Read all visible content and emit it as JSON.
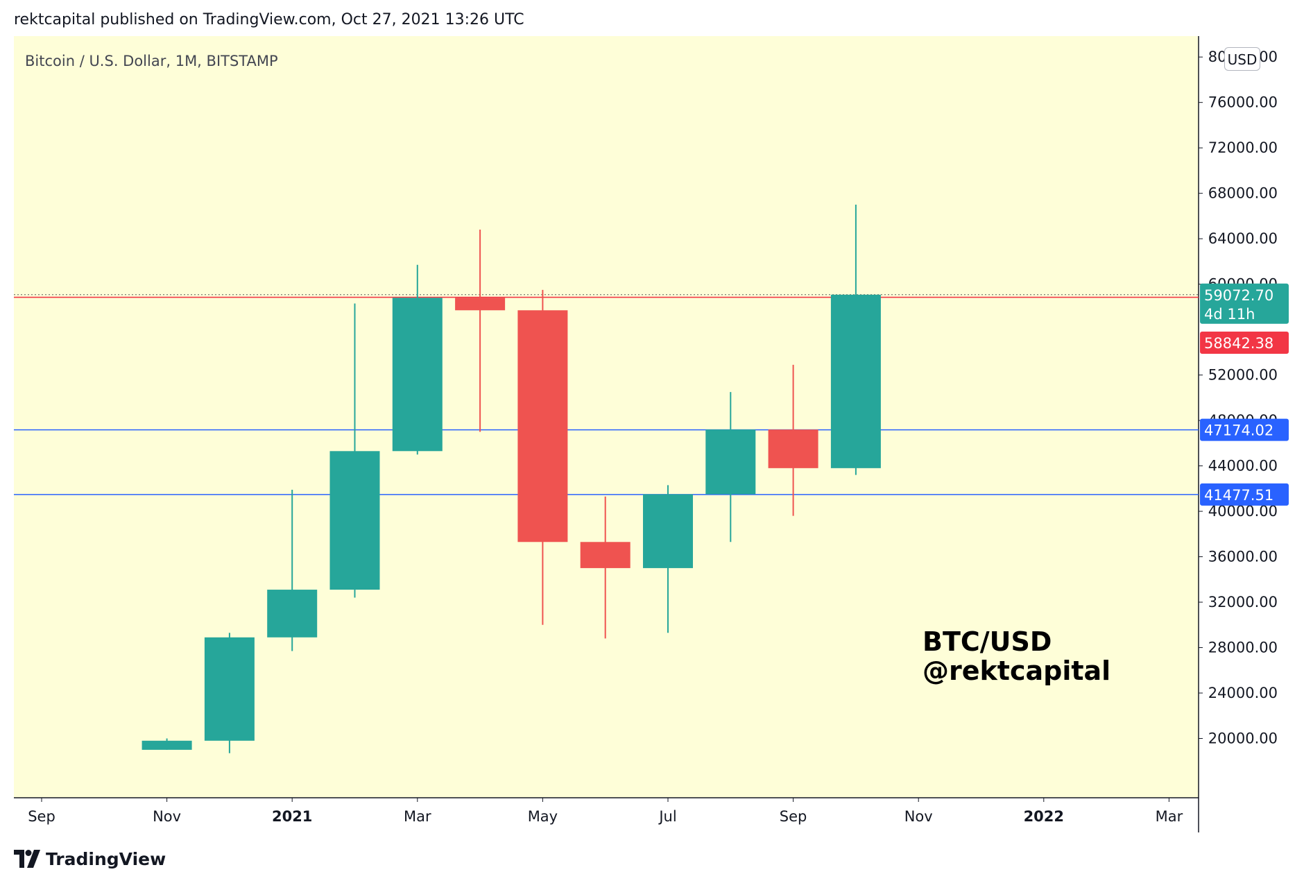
{
  "header": {
    "published": "rektcapital published on TradingView.com, Oct 27, 2021 13:26 UTC"
  },
  "footer": {
    "brand": "TradingView"
  },
  "chart_data": {
    "type": "candlestick",
    "title": "Bitcoin / U.S. Dollar, 1M, BITSTAMP",
    "currency_badge": "USD",
    "watermark": [
      "BTC/USD",
      "@rektcapital"
    ],
    "background": "#fefed8",
    "up_color": "#26a69a",
    "down_color": "#ef5350",
    "ylim": [
      16000,
      80500
    ],
    "y_ticks": [
      {
        "v": 80000,
        "label": "80000.00"
      },
      {
        "v": 76000,
        "label": "76000.00"
      },
      {
        "v": 72000,
        "label": "72000.00"
      },
      {
        "v": 68000,
        "label": "68000.00"
      },
      {
        "v": 64000,
        "label": "64000.00"
      },
      {
        "v": 60000,
        "label": "60000.00"
      },
      {
        "v": 52000,
        "label": "52000.00"
      },
      {
        "v": 48000,
        "label": "48000.00"
      },
      {
        "v": 44000,
        "label": "44000.00"
      },
      {
        "v": 40000,
        "label": "40000.00"
      },
      {
        "v": 36000,
        "label": "36000.00"
      },
      {
        "v": 32000,
        "label": "32000.00"
      },
      {
        "v": 28000,
        "label": "28000.00"
      },
      {
        "v": 24000,
        "label": "24000.00"
      },
      {
        "v": 20000,
        "label": "20000.00"
      }
    ],
    "x_ticks": [
      {
        "i": 0,
        "label": "Sep",
        "bold": false
      },
      {
        "i": 2,
        "label": "Nov",
        "bold": false
      },
      {
        "i": 4,
        "label": "2021",
        "bold": true
      },
      {
        "i": 6,
        "label": "Mar",
        "bold": false
      },
      {
        "i": 8,
        "label": "May",
        "bold": false
      },
      {
        "i": 10,
        "label": "Jul",
        "bold": false
      },
      {
        "i": 12,
        "label": "Sep",
        "bold": false
      },
      {
        "i": 14,
        "label": "Nov",
        "bold": false
      },
      {
        "i": 16,
        "label": "2022",
        "bold": true
      },
      {
        "i": 18,
        "label": "Mar",
        "bold": false
      }
    ],
    "candles": [
      {
        "month": "Nov 2020",
        "i": 2,
        "open": 19000,
        "high": 20000,
        "low": 19000,
        "close": 19800
      },
      {
        "month": "Dec 2020",
        "i": 3,
        "open": 19800,
        "high": 29300,
        "low": 18700,
        "close": 28900
      },
      {
        "month": "Jan 2021",
        "i": 4,
        "open": 28900,
        "high": 41900,
        "low": 27700,
        "close": 33100
      },
      {
        "month": "Feb 2021",
        "i": 5,
        "open": 33100,
        "high": 58300,
        "low": 32400,
        "close": 45300
      },
      {
        "month": "Mar 2021",
        "i": 6,
        "open": 45300,
        "high": 61700,
        "low": 45000,
        "close": 58800
      },
      {
        "month": "Apr 2021",
        "i": 7,
        "open": 58800,
        "high": 64800,
        "low": 47000,
        "close": 57700
      },
      {
        "month": "May 2021",
        "i": 8,
        "open": 57700,
        "high": 59500,
        "low": 30000,
        "close": 37300
      },
      {
        "month": "Jun 2021",
        "i": 9,
        "open": 37300,
        "high": 41300,
        "low": 28800,
        "close": 35000
      },
      {
        "month": "Jul 2021",
        "i": 10,
        "open": 35000,
        "high": 42300,
        "low": 29300,
        "close": 41500
      },
      {
        "month": "Aug 2021",
        "i": 11,
        "open": 41500,
        "high": 50500,
        "low": 37300,
        "close": 47200
      },
      {
        "month": "Sep 2021",
        "i": 12,
        "open": 47200,
        "high": 52900,
        "low": 39600,
        "close": 43800
      },
      {
        "month": "Oct 2021",
        "i": 13,
        "open": 43800,
        "high": 67000,
        "low": 43200,
        "close": 59072.7
      }
    ],
    "horizontal_lines": [
      {
        "price": 58842.38,
        "label": "58842.38",
        "color": "#f23645"
      },
      {
        "price": 47174.02,
        "label": "47174.02",
        "color": "#2962ff"
      },
      {
        "price": 41477.51,
        "label": "41477.51",
        "color": "#2962ff"
      }
    ],
    "last_price": {
      "price": 59072.7,
      "label": "59072.70",
      "countdown": "4d 11h",
      "color": "#26a69a"
    }
  }
}
